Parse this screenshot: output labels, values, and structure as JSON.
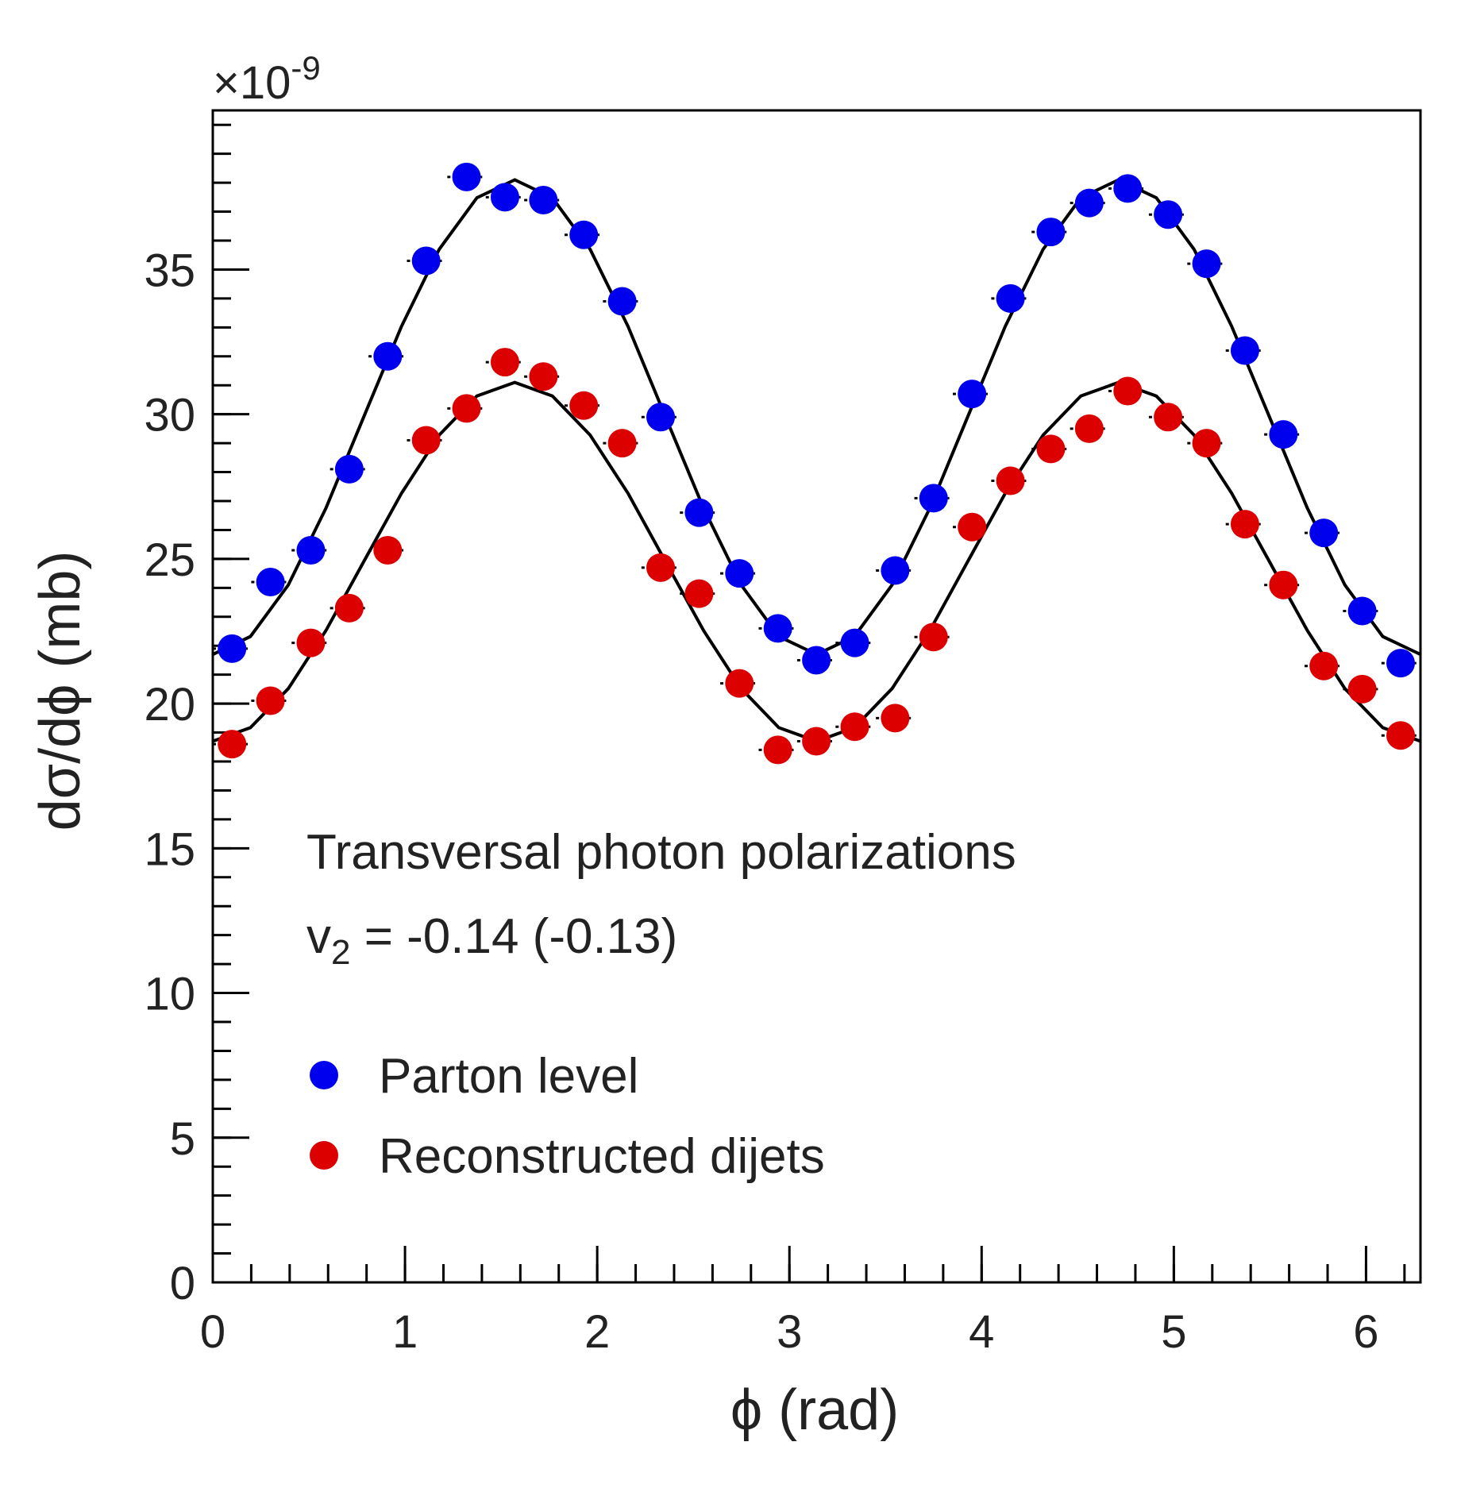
{
  "chart_data": {
    "type": "scatter",
    "y_scale_label": {
      "base": "×10",
      "exponent": "-9"
    },
    "xlabel": "ϕ (rad)",
    "ylabel": "dσ/dϕ (mb)",
    "annotation": "Transversal photon polarizations",
    "annotation_v2": {
      "symbol": "v",
      "subscript": "2",
      "text": " = -0.14 (-0.13)"
    },
    "xlim": [
      0,
      6.2832
    ],
    "ylim": [
      0,
      40.5
    ],
    "xticks": [
      0,
      1,
      2,
      3,
      4,
      5,
      6
    ],
    "yticks": [
      0,
      5,
      10,
      15,
      20,
      25,
      30,
      35
    ],
    "x_err": 0.1,
    "x": [
      0.1,
      0.3,
      0.51,
      0.71,
      0.91,
      1.11,
      1.32,
      1.52,
      1.72,
      1.93,
      2.13,
      2.33,
      2.53,
      2.74,
      2.94,
      3.14,
      3.34,
      3.55,
      3.75,
      3.95,
      4.15,
      4.36,
      4.56,
      4.76,
      4.97,
      5.17,
      5.37,
      5.57,
      5.78,
      5.98,
      6.18
    ],
    "series": [
      {
        "name": "Parton level",
        "color": "#0000ee",
        "values": [
          21.9,
          24.2,
          25.3,
          28.1,
          32.0,
          35.3,
          38.2,
          37.5,
          37.4,
          36.2,
          33.9,
          29.9,
          26.6,
          24.5,
          22.6,
          21.5,
          22.1,
          24.6,
          27.1,
          30.7,
          34.0,
          36.3,
          37.3,
          37.8,
          36.9,
          35.2,
          32.2,
          29.3,
          25.9,
          23.2,
          21.4
        ]
      },
      {
        "name": "Reconstructed dijets",
        "color": "#dd0000",
        "values": [
          18.6,
          20.1,
          22.1,
          23.3,
          25.3,
          29.1,
          30.2,
          31.8,
          31.3,
          30.3,
          29.0,
          24.7,
          23.8,
          20.7,
          18.4,
          18.7,
          19.2,
          19.5,
          22.3,
          26.1,
          27.7,
          28.8,
          29.5,
          30.8,
          29.9,
          29.0,
          26.2,
          24.1,
          21.3,
          20.5,
          18.9
        ]
      }
    ],
    "fits": {
      "color": "#000000",
      "x": [
        0,
        0.196,
        0.393,
        0.589,
        0.785,
        0.982,
        1.178,
        1.374,
        1.571,
        1.767,
        1.963,
        2.16,
        2.356,
        2.553,
        2.749,
        2.945,
        3.142,
        3.338,
        3.534,
        3.731,
        3.927,
        4.123,
        4.32,
        4.516,
        4.712,
        4.909,
        5.105,
        5.301,
        5.498,
        5.694,
        5.89,
        6.087,
        6.283
      ],
      "curves": [
        [
          21.7,
          22.32,
          24.1,
          26.76,
          29.9,
          33.04,
          35.7,
          37.48,
          38.1,
          37.48,
          35.7,
          33.04,
          29.9,
          26.76,
          24.1,
          22.32,
          21.7,
          22.32,
          24.1,
          26.76,
          29.9,
          33.04,
          35.7,
          37.48,
          38.1,
          37.48,
          35.7,
          33.04,
          29.9,
          26.76,
          24.1,
          22.32,
          21.7
        ],
        [
          18.7,
          19.17,
          20.52,
          22.53,
          24.9,
          27.27,
          29.28,
          30.63,
          31.1,
          30.63,
          29.28,
          27.27,
          24.9,
          22.53,
          20.52,
          19.17,
          18.7,
          19.17,
          20.52,
          22.53,
          24.9,
          27.27,
          29.28,
          30.63,
          31.1,
          30.63,
          29.28,
          27.27,
          24.9,
          22.53,
          20.52,
          19.17,
          18.7
        ]
      ]
    }
  }
}
